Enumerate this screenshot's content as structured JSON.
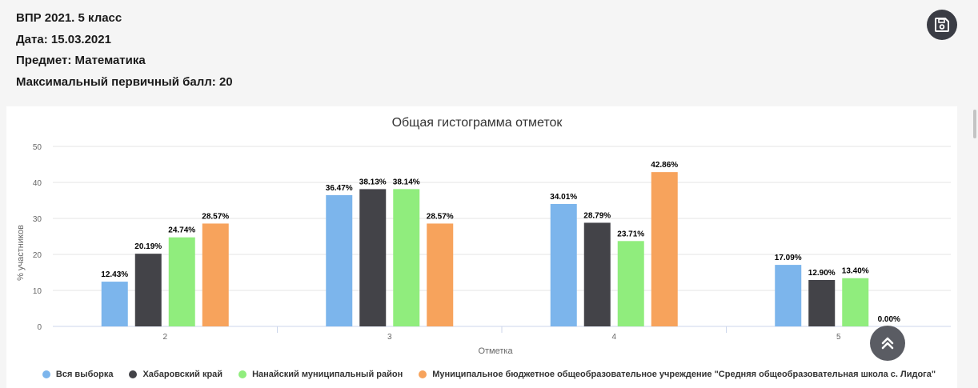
{
  "header": {
    "line1": "ВПР 2021. 5 класс",
    "line2": "Дата: 15.03.2021",
    "line3": "Предмет: Математика",
    "line4": "Максимальный первичный балл: 20"
  },
  "icons": {
    "save": "floppy-disk-icon",
    "scroll_top": "double-chevron-up-icon"
  },
  "chart_data": {
    "type": "bar",
    "title": "Общая гистограмма отметок",
    "xlabel": "Отметка",
    "ylabel": "% участников",
    "categories": [
      "2",
      "3",
      "4",
      "5"
    ],
    "ylim": [
      0,
      50
    ],
    "yticks": [
      0,
      10,
      20,
      30,
      40,
      50
    ],
    "grid": true,
    "legend_position": "bottom",
    "series": [
      {
        "name": "Вся выборка",
        "color": "#7cb5ec",
        "values": [
          12.43,
          36.47,
          34.01,
          17.09
        ],
        "labels": [
          "12.43%",
          "36.47%",
          "34.01%",
          "17.09%"
        ]
      },
      {
        "name": "Хабаровский край",
        "color": "#434348",
        "values": [
          20.19,
          38.13,
          28.79,
          12.9
        ],
        "labels": [
          "20.19%",
          "38.13%",
          "28.79%",
          "12.90%"
        ]
      },
      {
        "name": "Нанайский муниципальный район",
        "color": "#90ed7d",
        "values": [
          24.74,
          38.14,
          23.71,
          13.4
        ],
        "labels": [
          "24.74%",
          "38.14%",
          "23.71%",
          "13.40%"
        ]
      },
      {
        "name": "Муниципальное бюджетное общеобразовательное учреждение \"Средняя общеобразовательная школа с. Лидога\"",
        "color": "#f7a35c",
        "values": [
          28.57,
          28.57,
          42.86,
          0.0
        ],
        "labels": [
          "28.57%",
          "28.57%",
          "42.86%",
          "0.00%"
        ]
      }
    ]
  }
}
